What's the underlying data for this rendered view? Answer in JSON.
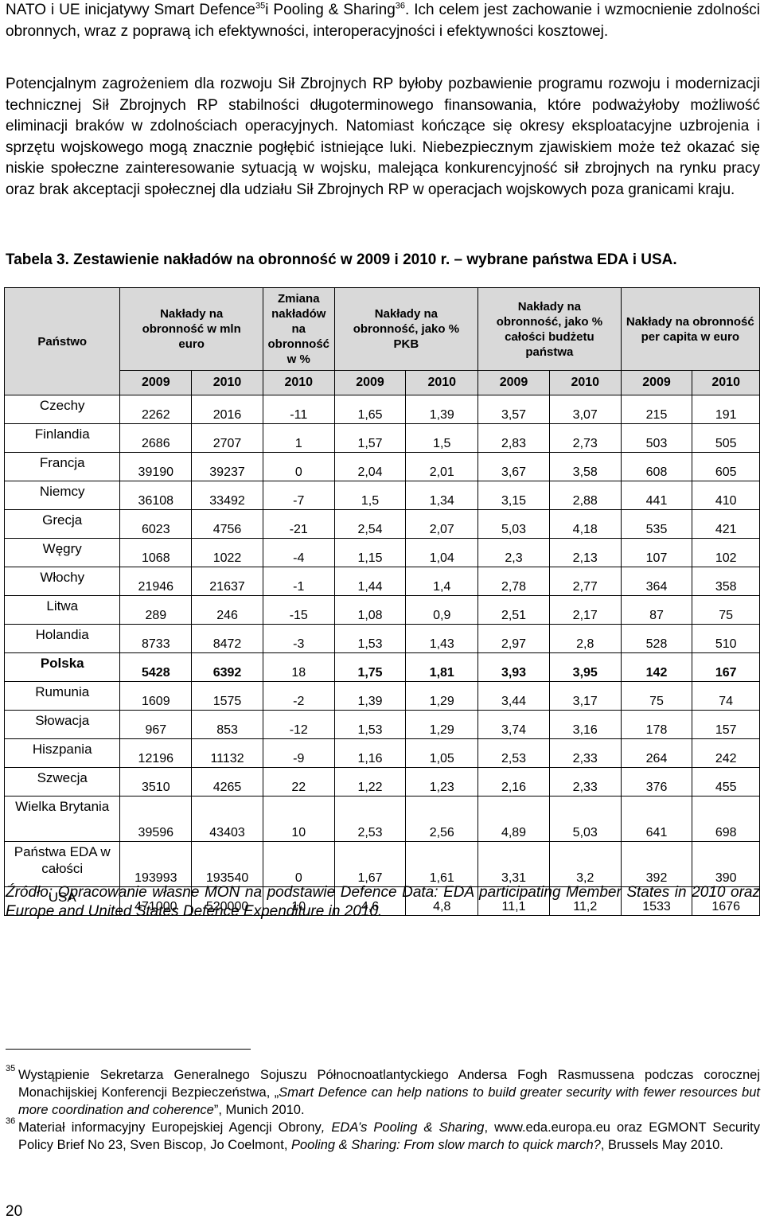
{
  "paragraph1": {
    "part_a": "NATO i UE inicjatywy Smart Defence",
    "sup_a": "35",
    "part_b": "i Pooling & Sharing",
    "sup_b": "36",
    "part_c": ". Ich celem jest zachowanie i wzmocnienie zdolności obronnych, wraz z poprawą ich efektywności, interoperacyjności i efektywności kosztowej."
  },
  "paragraph2": "Potencjalnym zagrożeniem dla rozwoju Sił Zbrojnych RP byłoby pozbawienie programu rozwoju i modernizacji technicznej Sił Zbrojnych RP stabilności długoterminowego finansowania, które podważyłoby możliwość eliminacji braków w zdolnościach operacyjnych. Natomiast kończące się okresy eksploatacyjne uzbrojenia i sprzętu wojskowego mogą znacznie pogłębić istniejące luki. Niebezpiecznym zjawiskiem może też okazać się niskie społeczne zainteresowanie sytuacją w wojsku, malejąca konkurencyjność sił zbrojnych na rynku pracy oraz brak akceptacji społecznej dla udziału Sił Zbrojnych RP w operacjach wojskowych poza granicami kraju.",
  "caption": "Tabela 3. Zestawienie nakładów na obronność w 2009 i 2010 r. – wybrane państwa EDA i USA.",
  "table": {
    "headers": {
      "country": "Państwo",
      "spending": "Nakłady na obronność w mln euro",
      "change": "Zmiana nakładów na obronność w %",
      "gdp": "Nakłady na obronność, jako % PKB",
      "budget": "Nakłady na obronność, jako % całości budżetu państwa",
      "per_capita": "Nakłady na obronność per capita w euro"
    },
    "years": [
      "2009",
      "2010",
      "2010",
      "2009",
      "2010",
      "2009",
      "2010",
      "2009",
      "2010"
    ],
    "rows": [
      {
        "country": "Czechy",
        "values": [
          "2262",
          "2016",
          "-11",
          "1,65",
          "1,39",
          "3,57",
          "3,07",
          "215",
          "191"
        ]
      },
      {
        "country": "Finlandia",
        "values": [
          "2686",
          "2707",
          "1",
          "1,57",
          "1,5",
          "2,83",
          "2,73",
          "503",
          "505"
        ]
      },
      {
        "country": "Francja",
        "values": [
          "39190",
          "39237",
          "0",
          "2,04",
          "2,01",
          "3,67",
          "3,58",
          "608",
          "605"
        ]
      },
      {
        "country": "Niemcy",
        "values": [
          "36108",
          "33492",
          "-7",
          "1,5",
          "1,34",
          "3,15",
          "2,88",
          "441",
          "410"
        ]
      },
      {
        "country": "Grecja",
        "values": [
          "6023",
          "4756",
          "-21",
          "2,54",
          "2,07",
          "5,03",
          "4,18",
          "535",
          "421"
        ]
      },
      {
        "country": "Węgry",
        "values": [
          "1068",
          "1022",
          "-4",
          "1,15",
          "1,04",
          "2,3",
          "2,13",
          "107",
          "102"
        ]
      },
      {
        "country": "Włochy",
        "values": [
          "21946",
          "21637",
          "-1",
          "1,44",
          "1,4",
          "2,78",
          "2,77",
          "364",
          "358"
        ]
      },
      {
        "country": "Litwa",
        "values": [
          "289",
          "246",
          "-15",
          "1,08",
          "0,9",
          "2,51",
          "2,17",
          "87",
          "75"
        ]
      },
      {
        "country": "Holandia",
        "values": [
          "8733",
          "8472",
          "-3",
          "1,53",
          "1,43",
          "2,97",
          "2,8",
          "528",
          "510"
        ]
      },
      {
        "country": "Polska",
        "values": [
          "5428",
          "6392",
          "18",
          "1,75",
          "1,81",
          "3,93",
          "3,95",
          "142",
          "167"
        ]
      },
      {
        "country": "Rumunia",
        "values": [
          "1609",
          "1575",
          "-2",
          "1,39",
          "1,29",
          "3,44",
          "3,17",
          "75",
          "74"
        ]
      },
      {
        "country": "Słowacja",
        "values": [
          "967",
          "853",
          "-12",
          "1,53",
          "1,29",
          "3,74",
          "3,16",
          "178",
          "157"
        ]
      },
      {
        "country": "Hiszpania",
        "values": [
          "12196",
          "11132",
          "-9",
          "1,16",
          "1,05",
          "2,53",
          "2,33",
          "264",
          "242"
        ]
      },
      {
        "country": "Szwecja",
        "values": [
          "3510",
          "4265",
          "22",
          "1,22",
          "1,23",
          "2,16",
          "2,33",
          "376",
          "455"
        ]
      },
      {
        "country": "Wielka Brytania",
        "values": [
          "39596",
          "43403",
          "10",
          "2,53",
          "2,56",
          "4,89",
          "5,03",
          "641",
          "698"
        ]
      },
      {
        "country": "Państwa EDA w całości",
        "values": [
          "193993",
          "193540",
          "0",
          "1,67",
          "1,61",
          "3,31",
          "3,2",
          "392",
          "390"
        ]
      },
      {
        "country": "USA",
        "values": [
          "471000",
          "520000",
          "10",
          "4,6",
          "4,8",
          "11,1",
          "11,2",
          "1533",
          "1676"
        ]
      }
    ]
  },
  "source": "Źródło: Opracowanie własne MON na podstawie Defence Data: EDA participating Member States in 2010 oraz Europe and United States Defence Expenditure in 2010.",
  "footnotes": {
    "fn35_num": "35",
    "fn35_a": "Wystąpienie Sekretarza Generalnego Sojuszu Północnoatlantyckiego Andersa Fogh Rasmussena podczas corocznej Monachijskiej Konferencji Bezpieczeństwa, „",
    "fn35_b": "Smart Defence can help nations to build greater security with fewer resources but more coordination and coherence",
    "fn35_c": "”, Munich 2010.",
    "fn36_num": "36",
    "fn36_a": "Materiał informacyjny Europejskiej Agencji Obrony",
    "fn36_b": ", EDA’s Pooling & Sharing",
    "fn36_c": ", www.eda.europa.eu oraz EGMONT Security Policy Brief No 23, Sven Biscop, Jo Coelmont, ",
    "fn36_d": "Pooling & Sharing: From slow march to quick march?",
    "fn36_e": ", Brussels May 2010."
  },
  "page_number": "20"
}
